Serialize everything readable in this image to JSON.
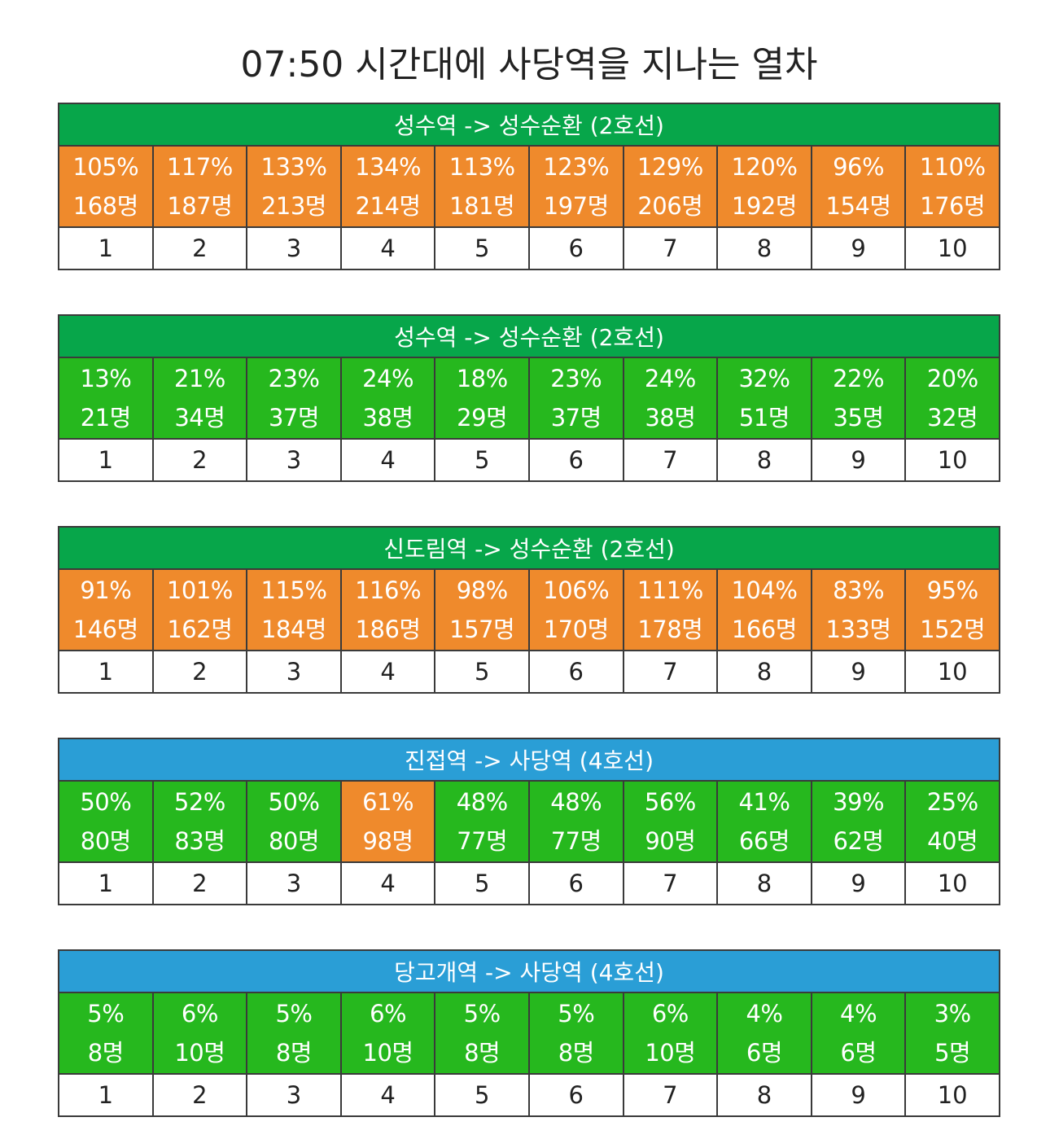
{
  "title": "07:50 시간대에 사당역을 지나는 열차",
  "colors": {
    "line2_header": "#07a64a",
    "line4_header": "#2a9ed6",
    "crowded": "#ef8a2c",
    "normal": "#26b81e",
    "grid": "#3a3a3a"
  },
  "trains": [
    {
      "route": "성수역 -> 성수순환 (2호선)",
      "line": "line2",
      "cars": [
        {
          "car": "1",
          "load": "105%",
          "people": "168명",
          "level": "crowded"
        },
        {
          "car": "2",
          "load": "117%",
          "people": "187명",
          "level": "crowded"
        },
        {
          "car": "3",
          "load": "133%",
          "people": "213명",
          "level": "crowded"
        },
        {
          "car": "4",
          "load": "134%",
          "people": "214명",
          "level": "crowded"
        },
        {
          "car": "5",
          "load": "113%",
          "people": "181명",
          "level": "crowded"
        },
        {
          "car": "6",
          "load": "123%",
          "people": "197명",
          "level": "crowded"
        },
        {
          "car": "7",
          "load": "129%",
          "people": "206명",
          "level": "crowded"
        },
        {
          "car": "8",
          "load": "120%",
          "people": "192명",
          "level": "crowded"
        },
        {
          "car": "9",
          "load": "96%",
          "people": "154명",
          "level": "crowded"
        },
        {
          "car": "10",
          "load": "110%",
          "people": "176명",
          "level": "crowded"
        }
      ]
    },
    {
      "route": "성수역 -> 성수순환 (2호선)",
      "line": "line2",
      "cars": [
        {
          "car": "1",
          "load": "13%",
          "people": "21명",
          "level": "normal"
        },
        {
          "car": "2",
          "load": "21%",
          "people": "34명",
          "level": "normal"
        },
        {
          "car": "3",
          "load": "23%",
          "people": "37명",
          "level": "normal"
        },
        {
          "car": "4",
          "load": "24%",
          "people": "38명",
          "level": "normal"
        },
        {
          "car": "5",
          "load": "18%",
          "people": "29명",
          "level": "normal"
        },
        {
          "car": "6",
          "load": "23%",
          "people": "37명",
          "level": "normal"
        },
        {
          "car": "7",
          "load": "24%",
          "people": "38명",
          "level": "normal"
        },
        {
          "car": "8",
          "load": "32%",
          "people": "51명",
          "level": "normal"
        },
        {
          "car": "9",
          "load": "22%",
          "people": "35명",
          "level": "normal"
        },
        {
          "car": "10",
          "load": "20%",
          "people": "32명",
          "level": "normal"
        }
      ]
    },
    {
      "route": "신도림역 -> 성수순환 (2호선)",
      "line": "line2",
      "cars": [
        {
          "car": "1",
          "load": "91%",
          "people": "146명",
          "level": "crowded"
        },
        {
          "car": "2",
          "load": "101%",
          "people": "162명",
          "level": "crowded"
        },
        {
          "car": "3",
          "load": "115%",
          "people": "184명",
          "level": "crowded"
        },
        {
          "car": "4",
          "load": "116%",
          "people": "186명",
          "level": "crowded"
        },
        {
          "car": "5",
          "load": "98%",
          "people": "157명",
          "level": "crowded"
        },
        {
          "car": "6",
          "load": "106%",
          "people": "170명",
          "level": "crowded"
        },
        {
          "car": "7",
          "load": "111%",
          "people": "178명",
          "level": "crowded"
        },
        {
          "car": "8",
          "load": "104%",
          "people": "166명",
          "level": "crowded"
        },
        {
          "car": "9",
          "load": "83%",
          "people": "133명",
          "level": "crowded"
        },
        {
          "car": "10",
          "load": "95%",
          "people": "152명",
          "level": "crowded"
        }
      ]
    },
    {
      "route": "진접역 -> 사당역 (4호선)",
      "line": "line4",
      "cars": [
        {
          "car": "1",
          "load": "50%",
          "people": "80명",
          "level": "normal"
        },
        {
          "car": "2",
          "load": "52%",
          "people": "83명",
          "level": "normal"
        },
        {
          "car": "3",
          "load": "50%",
          "people": "80명",
          "level": "normal"
        },
        {
          "car": "4",
          "load": "61%",
          "people": "98명",
          "level": "crowded"
        },
        {
          "car": "5",
          "load": "48%",
          "people": "77명",
          "level": "normal"
        },
        {
          "car": "6",
          "load": "48%",
          "people": "77명",
          "level": "normal"
        },
        {
          "car": "7",
          "load": "56%",
          "people": "90명",
          "level": "normal"
        },
        {
          "car": "8",
          "load": "41%",
          "people": "66명",
          "level": "normal"
        },
        {
          "car": "9",
          "load": "39%",
          "people": "62명",
          "level": "normal"
        },
        {
          "car": "10",
          "load": "25%",
          "people": "40명",
          "level": "normal"
        }
      ]
    },
    {
      "route": "당고개역 -> 사당역 (4호선)",
      "line": "line4",
      "cars": [
        {
          "car": "1",
          "load": "5%",
          "people": "8명",
          "level": "normal"
        },
        {
          "car": "2",
          "load": "6%",
          "people": "10명",
          "level": "normal"
        },
        {
          "car": "3",
          "load": "5%",
          "people": "8명",
          "level": "normal"
        },
        {
          "car": "4",
          "load": "6%",
          "people": "10명",
          "level": "normal"
        },
        {
          "car": "5",
          "load": "5%",
          "people": "8명",
          "level": "normal"
        },
        {
          "car": "6",
          "load": "5%",
          "people": "8명",
          "level": "normal"
        },
        {
          "car": "7",
          "load": "6%",
          "people": "10명",
          "level": "normal"
        },
        {
          "car": "8",
          "load": "4%",
          "people": "6명",
          "level": "normal"
        },
        {
          "car": "9",
          "load": "4%",
          "people": "6명",
          "level": "normal"
        },
        {
          "car": "10",
          "load": "3%",
          "people": "5명",
          "level": "normal"
        }
      ]
    }
  ]
}
